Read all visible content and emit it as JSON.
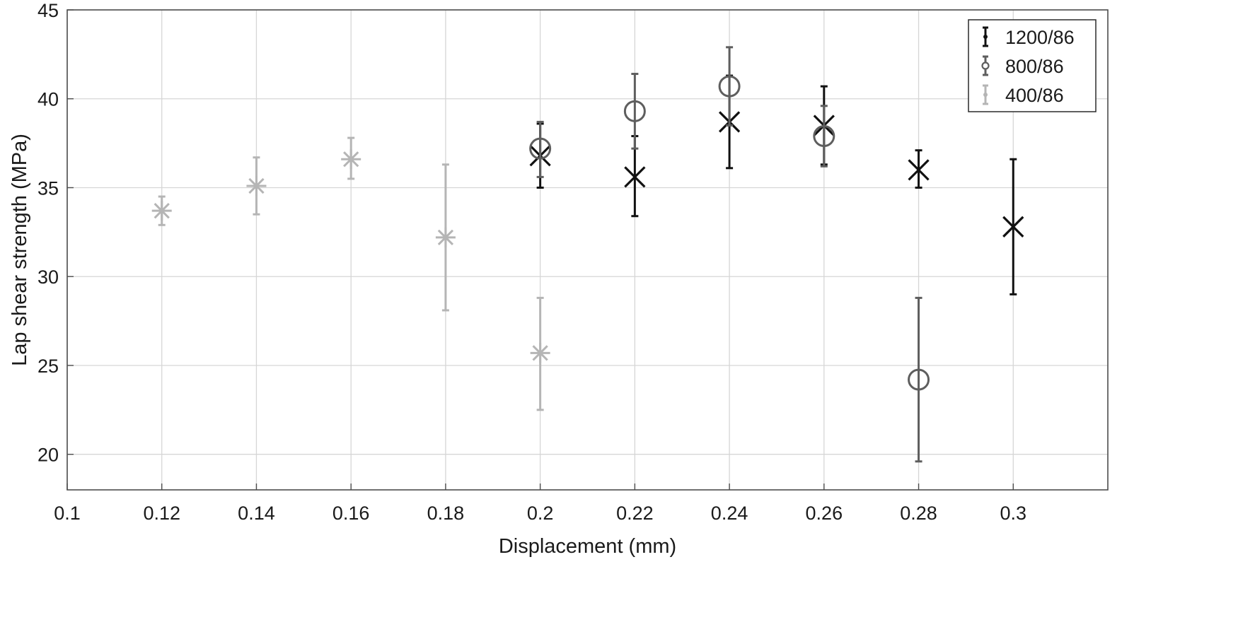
{
  "chart_data": {
    "type": "scatter",
    "title": "",
    "xlabel": "Displacement (mm)",
    "ylabel": "Lap shear strength (MPa)",
    "xlim": [
      0.1,
      0.32
    ],
    "ylim": [
      18,
      45
    ],
    "x_ticks": [
      0.1,
      0.12,
      0.14,
      0.16,
      0.18,
      0.2,
      0.22,
      0.24,
      0.26,
      0.28,
      0.3
    ],
    "x_tick_labels": [
      "0.1",
      "0.12",
      "0.14",
      "0.16",
      "0.18",
      "0.2",
      "0.22",
      "0.24",
      "0.26",
      "0.28",
      "0.3"
    ],
    "y_ticks": [
      20,
      25,
      30,
      35,
      40,
      45
    ],
    "y_tick_labels": [
      "20",
      "25",
      "30",
      "35",
      "40",
      "45"
    ],
    "grid": true,
    "legend_position": "top-right",
    "error_bars": true,
    "series": [
      {
        "name": "1200/86",
        "marker": "x",
        "color": "#111111",
        "points": [
          {
            "x": 0.2,
            "y": 36.8,
            "lo": 35.0,
            "hi": 38.6
          },
          {
            "x": 0.22,
            "y": 35.6,
            "lo": 33.4,
            "hi": 37.9
          },
          {
            "x": 0.24,
            "y": 38.7,
            "lo": 36.1,
            "hi": 41.3
          },
          {
            "x": 0.26,
            "y": 38.5,
            "lo": 36.3,
            "hi": 40.7
          },
          {
            "x": 0.28,
            "y": 36.0,
            "lo": 35.0,
            "hi": 37.1
          },
          {
            "x": 0.3,
            "y": 32.8,
            "lo": 29.0,
            "hi": 36.6
          }
        ]
      },
      {
        "name": "800/86",
        "marker": "o",
        "color": "#5e5e5e",
        "points": [
          {
            "x": 0.2,
            "y": 37.2,
            "lo": 35.6,
            "hi": 38.7
          },
          {
            "x": 0.22,
            "y": 39.3,
            "lo": 37.2,
            "hi": 41.4
          },
          {
            "x": 0.24,
            "y": 40.7,
            "lo": 38.5,
            "hi": 42.9
          },
          {
            "x": 0.26,
            "y": 37.9,
            "lo": 36.2,
            "hi": 39.6
          },
          {
            "x": 0.28,
            "y": 24.2,
            "lo": 19.6,
            "hi": 28.8
          }
        ]
      },
      {
        "name": "400/86",
        "marker": "*",
        "color": "#b5b5b5",
        "points": [
          {
            "x": 0.12,
            "y": 33.7,
            "lo": 32.9,
            "hi": 34.5
          },
          {
            "x": 0.14,
            "y": 35.1,
            "lo": 33.5,
            "hi": 36.7
          },
          {
            "x": 0.16,
            "y": 36.6,
            "lo": 35.5,
            "hi": 37.8
          },
          {
            "x": 0.18,
            "y": 32.2,
            "lo": 28.1,
            "hi": 36.3
          },
          {
            "x": 0.2,
            "y": 25.7,
            "lo": 22.5,
            "hi": 28.8
          }
        ]
      }
    ]
  }
}
